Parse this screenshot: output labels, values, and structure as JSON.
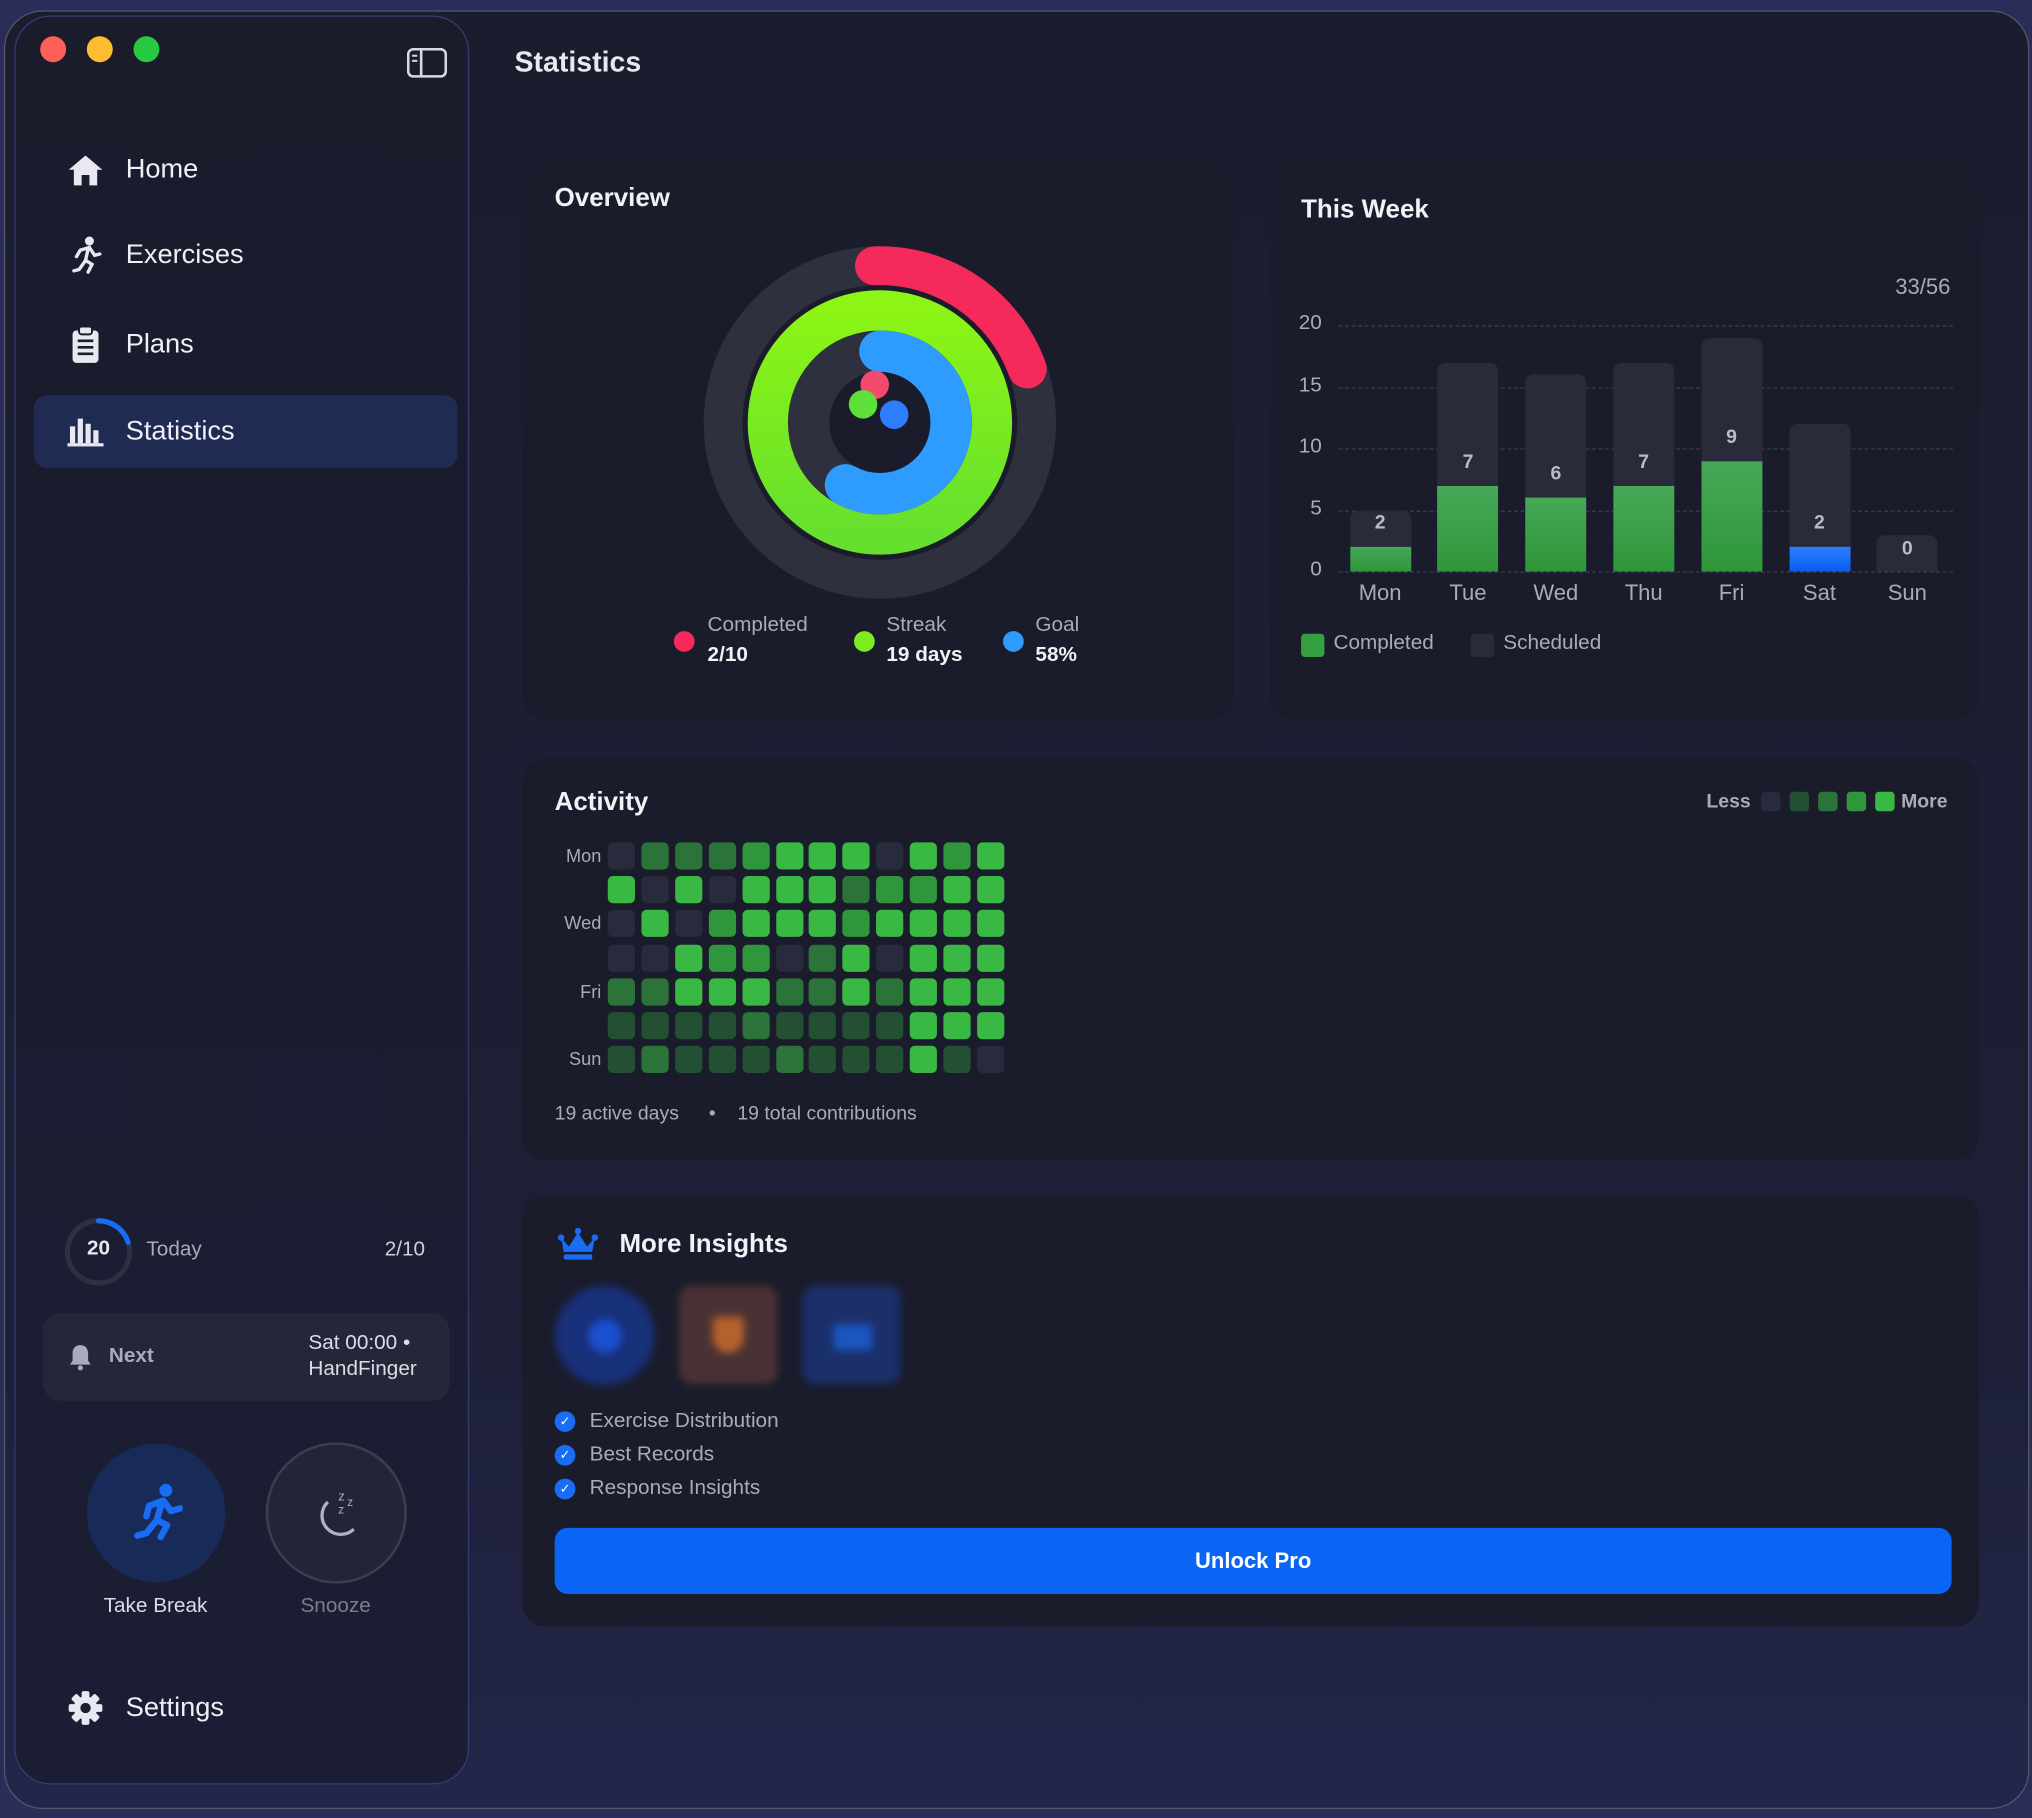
{
  "window": {
    "traffic_lights": {
      "close": "#ff5f57",
      "minimize": "#febc2e",
      "zoom": "#28c840"
    }
  },
  "sidebar": {
    "items": [
      {
        "label": "Home",
        "icon": "house-icon"
      },
      {
        "label": "Exercises",
        "icon": "running-figure-icon"
      },
      {
        "label": "Plans",
        "icon": "clipboard-icon"
      },
      {
        "label": "Statistics",
        "icon": "bar-chart-icon",
        "selected": true
      }
    ],
    "today": {
      "ring_value": "20",
      "label": "Today",
      "progress": "2/10",
      "ring_fraction": 0.2
    },
    "next": {
      "label": "Next",
      "time": "Sat 00:00 •",
      "exercise": "HandFinger"
    },
    "take_break_label": "Take Break",
    "snooze_label": "Snooze",
    "settings_label": "Settings"
  },
  "header": {
    "title": "Statistics"
  },
  "overview": {
    "title": "Overview",
    "rings": [
      {
        "label": "Completed",
        "value": "2/10",
        "fraction": 0.2,
        "color": "#f52a5a"
      },
      {
        "label": "Streak",
        "value": "19 days",
        "fraction": 1.0,
        "color": "#7ded22"
      },
      {
        "label": "Goal",
        "value": "58%",
        "fraction": 0.58,
        "color": "#2e9cff"
      }
    ]
  },
  "chart_data": {
    "type": "bar",
    "title": "This Week",
    "summary": "33/56",
    "categories": [
      "Mon",
      "Tue",
      "Wed",
      "Thu",
      "Fri",
      "Sat",
      "Sun"
    ],
    "series": [
      {
        "name": "Completed",
        "values": [
          2,
          7,
          6,
          7,
          9,
          2,
          0
        ],
        "color": "#35a040"
      },
      {
        "name": "Scheduled",
        "values": [
          5,
          17,
          16,
          17,
          19,
          12,
          3
        ],
        "color": "#292b3a"
      }
    ],
    "highlight_color": "#1a6cf5",
    "highlight_index": 5,
    "yticks": [
      "0",
      "5",
      "10",
      "15",
      "20"
    ],
    "ylim": [
      0,
      20
    ],
    "grid": true,
    "legend": "bottom-left"
  },
  "activity": {
    "title": "Activity",
    "legend_less": "Less",
    "legend_more": "More",
    "level_colors": [
      "#282b3b",
      "#235032",
      "#2b7338",
      "#30963b",
      "#39b843"
    ],
    "row_labels": [
      "Mon",
      "",
      "Wed",
      "",
      "Fri",
      "",
      "Sun"
    ],
    "levels": [
      [
        0,
        2,
        2,
        2,
        3,
        4,
        4,
        4,
        0,
        4,
        3,
        4
      ],
      [
        4,
        0,
        4,
        0,
        4,
        4,
        4,
        2,
        3,
        3,
        4,
        4
      ],
      [
        0,
        4,
        0,
        3,
        4,
        4,
        4,
        3,
        4,
        4,
        4,
        4
      ],
      [
        0,
        0,
        4,
        3,
        3,
        0,
        2,
        4,
        0,
        4,
        4,
        4
      ],
      [
        2,
        2,
        4,
        4,
        4,
        2,
        2,
        4,
        2,
        4,
        4,
        4
      ],
      [
        1,
        1,
        1,
        1,
        2,
        1,
        1,
        1,
        1,
        4,
        4,
        4
      ],
      [
        1,
        2,
        1,
        1,
        1,
        2,
        1,
        1,
        1,
        4,
        1,
        0
      ]
    ],
    "active_days": "19 active days",
    "separator": "•",
    "contributions": "19 total contributions"
  },
  "insights": {
    "title": "More Insights",
    "features": [
      "Exercise Distribution",
      "Best Records",
      "Response Insights"
    ],
    "unlock_label": "Unlock Pro"
  }
}
